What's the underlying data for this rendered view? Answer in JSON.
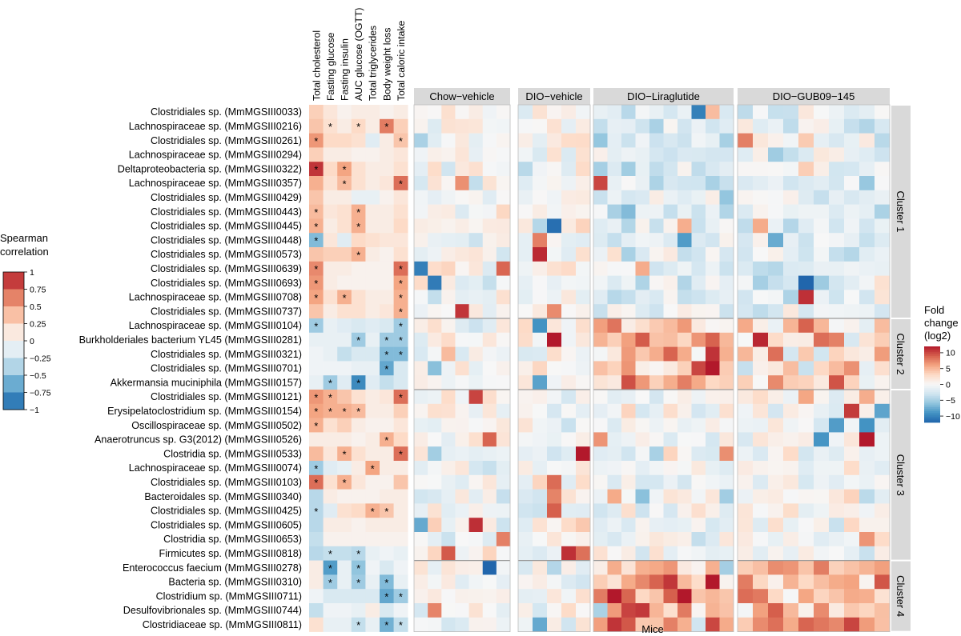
{
  "chart_data": [
    {
      "type": "heatmap",
      "title": "",
      "xlabel": "",
      "ylabel": "",
      "columns": [
        "Total cholesterol",
        "Fasting glucose",
        "Fasting insulin",
        "AUC glucose (OGTT)",
        "Total triglycerides",
        "Body weight loss",
        "Total caloric intake"
      ],
      "rows": [
        "Clostridiales sp. (MmMGSIII0033)",
        "Lachnospiraceae sp. (MmMGSIII0216)",
        "Clostridiales sp. (MmMGSIII0261)",
        "Lachnospiraceae sp. (MmMGSIII0294)",
        "Deltaproteobacteria sp. (MmMGSIII0322)",
        "Lachnospiraceae sp. (MmMGSIII0357)",
        "Clostridiales sp. (MmMGSIII0429)",
        "Clostridiales sp. (MmMGSIII0443)",
        "Clostridiales sp. (MmMGSIII0445)",
        "Clostridiales sp. (MmMGSIII0448)",
        "Clostridiales sp. (MmMGSIII0573)",
        "Clostridiales sp. (MmMGSIII0639)",
        "Clostridiales sp. (MmMGSIII0693)",
        "Lachnospiraceae sp. (MmMGSIII0708)",
        "Clostridiales sp. (MmMGSIII0737)",
        "Lachnospiraceae sp. (MmMGSIII0104)",
        "Burkholderiales bacterium YL45 (MmMGSIII0281)",
        "Clostridiales sp. (MmMGSIII0321)",
        "Clostridiales sp. (MmMGSIII0701)",
        "Akkermansia muciniphila (MmMGSIII0157)",
        "Clostridiales sp. (MmMGSIII0121)",
        "Erysipelatoclostridium sp. (MmMGSIII0154)",
        "Oscillospiraceae sp. (MmMGSIII0502)",
        "Anaerotruncus sp. G3(2012) (MmMGSIII0526)",
        "Clostridia sp. (MmMGSIII0533)",
        "Lachnospiraceae sp. (MmMGSIII0074)",
        "Clostridiales sp. (MmMGSIII0103)",
        "Bacteroidales sp. (MmMGSIII0340)",
        "Clostridiales sp. (MmMGSIII0425)",
        "Clostridiales sp. (MmMGSIII0605)",
        "Clostridia sp. (MmMGSIII0653)",
        "Firmicutes sp. (MmMGSIII0818)",
        "Enterococcus faecium (MmMGSIII0278)",
        "Bacteria sp. (MmMGSIII0310)",
        "Clostridium sp. (MmMGSIII0711)",
        "Desulfovibrionales sp. (MmMGSIII0744)",
        "Clostridiaceae sp. (MmMGSIII0811)"
      ],
      "values": [
        [
          0.3,
          0.15,
          0.05,
          0.1,
          0.1,
          0.05,
          0.1
        ],
        [
          0.35,
          0.2,
          0.1,
          0.25,
          0.1,
          0.65,
          0.3
        ],
        [
          0.55,
          0.25,
          0.25,
          0.2,
          -0.15,
          0.1,
          0.35
        ],
        [
          0.3,
          0.1,
          0.1,
          0.05,
          0.05,
          0.1,
          0.15
        ],
        [
          0.9,
          0.25,
          0.5,
          0.2,
          0.1,
          0.1,
          0.2
        ],
        [
          0.45,
          0.2,
          0.4,
          0.2,
          0.1,
          0.15,
          0.7
        ],
        [
          0.35,
          0.1,
          0.1,
          -0.1,
          -0.1,
          0.05,
          0.15
        ],
        [
          0.4,
          0.15,
          0.2,
          0.45,
          0.1,
          0.1,
          0.2
        ],
        [
          0.45,
          0.1,
          0.2,
          0.45,
          0.1,
          0.1,
          0.25
        ],
        [
          -0.55,
          0.15,
          -0.15,
          0.25,
          0.2,
          0.15,
          0.15
        ],
        [
          0.35,
          0.3,
          0.3,
          0.45,
          0.1,
          0.05,
          0.2
        ],
        [
          0.6,
          0.1,
          0.1,
          0.05,
          0.05,
          0.05,
          0.7
        ],
        [
          0.55,
          0.1,
          0.05,
          0.05,
          0.05,
          0.05,
          0.5
        ],
        [
          0.5,
          0.2,
          0.45,
          0.2,
          0.1,
          0.1,
          0.45
        ],
        [
          0.35,
          0.1,
          0.2,
          0.2,
          0.1,
          0.15,
          0.45
        ],
        [
          -0.45,
          -0.1,
          -0.15,
          -0.2,
          -0.15,
          -0.2,
          -0.45
        ],
        [
          -0.1,
          -0.1,
          -0.1,
          -0.45,
          -0.1,
          -0.45,
          -0.45
        ],
        [
          -0.05,
          -0.1,
          -0.3,
          -0.2,
          -0.2,
          -0.55,
          -0.55
        ],
        [
          -0.05,
          -0.05,
          -0.05,
          -0.1,
          -0.1,
          -0.65,
          -0.2
        ],
        [
          -0.1,
          -0.45,
          -0.15,
          -0.8,
          -0.15,
          -0.3,
          -0.2
        ],
        [
          0.55,
          0.45,
          0.35,
          0.2,
          0.1,
          0.15,
          0.7
        ],
        [
          0.5,
          0.45,
          0.45,
          0.4,
          0.1,
          0.1,
          0.3
        ],
        [
          0.45,
          0.2,
          0.3,
          0.1,
          0.05,
          0.05,
          0.15
        ],
        [
          0.1,
          0.1,
          0.1,
          0.05,
          0.1,
          0.45,
          0.25
        ],
        [
          0.4,
          0.15,
          0.45,
          0.2,
          0.1,
          0.1,
          0.7
        ],
        [
          -0.45,
          -0.15,
          -0.1,
          0.1,
          0.5,
          0.1,
          0.1
        ],
        [
          0.7,
          0.2,
          0.45,
          0.15,
          0.05,
          0.05,
          0.35
        ],
        [
          -0.35,
          0.1,
          0.05,
          0.05,
          0.05,
          0.1,
          0.1
        ],
        [
          -0.35,
          -0.15,
          0.2,
          0.25,
          0.45,
          0.35,
          0.1
        ],
        [
          -0.35,
          0.1,
          0.1,
          0.05,
          0.1,
          0.1,
          0.1
        ],
        [
          -0.3,
          0.05,
          0.05,
          0.05,
          0.05,
          0.05,
          0.05
        ],
        [
          -0.35,
          -0.3,
          -0.3,
          -0.35,
          -0.1,
          -0.05,
          -0.1
        ],
        [
          0.1,
          -0.7,
          -0.1,
          -0.5,
          -0.05,
          -0.2,
          -0.05
        ],
        [
          0.1,
          -0.45,
          -0.1,
          -0.45,
          -0.1,
          -0.55,
          -0.1
        ],
        [
          -0.05,
          -0.2,
          -0.2,
          -0.2,
          -0.2,
          -0.65,
          -0.45
        ],
        [
          -0.3,
          -0.05,
          -0.05,
          -0.1,
          0.1,
          -0.2,
          -0.05
        ],
        [
          0.2,
          -0.1,
          -0.1,
          -0.3,
          -0.1,
          -0.6,
          -0.3
        ]
      ],
      "significant": [
        [],
        [
          1,
          3,
          5
        ],
        [
          0,
          6
        ],
        [],
        [
          0,
          2
        ],
        [
          2,
          6
        ],
        [],
        [
          0,
          3
        ],
        [
          0,
          3
        ],
        [
          0
        ],
        [
          3
        ],
        [
          0,
          6
        ],
        [
          0,
          6
        ],
        [
          0,
          2,
          6
        ],
        [
          6
        ],
        [
          0,
          6
        ],
        [
          3,
          5,
          6
        ],
        [
          5,
          6
        ],
        [
          5
        ],
        [
          1,
          3
        ],
        [
          0,
          1,
          6
        ],
        [
          0,
          1,
          2,
          3
        ],
        [
          0
        ],
        [
          5
        ],
        [
          2,
          6
        ],
        [
          0,
          4
        ],
        [
          0,
          2
        ],
        [],
        [
          0,
          4,
          5
        ],
        [],
        [],
        [
          1,
          3
        ],
        [
          1,
          3
        ],
        [
          1,
          3,
          5
        ],
        [
          5,
          6
        ],
        [],
        [
          3,
          5,
          6
        ]
      ],
      "legend": {
        "title": [
          "Spearman",
          "correlation"
        ],
        "ticks": [
          "1",
          "0.75",
          "0.5",
          "0.25",
          "0",
          "−0.25",
          "−0.5",
          "−0.75",
          "−1"
        ],
        "colors": [
          "#b2182b",
          "#d6604d",
          "#f4a582",
          "#fddbc7",
          "#f7f7f7",
          "#d1e5f0",
          "#92c5de",
          "#4393c3",
          "#2166ac"
        ]
      }
    },
    {
      "type": "heatmap",
      "xlabel": "Mice",
      "panels": [
        {
          "label": "Chow−vehicle",
          "n_mice": 7
        },
        {
          "label": "DIO−vehicle",
          "n_mice": 5
        },
        {
          "label": "DIO−Liraglutide",
          "n_mice": 10
        },
        {
          "label": "DIO−GUB09−145",
          "n_mice": 10
        }
      ],
      "clusters": [
        {
          "label": "Cluster 1",
          "rows": 15
        },
        {
          "label": "Cluster 2",
          "rows": 5
        },
        {
          "label": "Cluster 3",
          "rows": 12
        },
        {
          "label": "Cluster 4",
          "rows": 5
        }
      ],
      "cluster_mean_log2fc": [
        {
          "Chow−vehicle": 0,
          "DIO−vehicle": 0,
          "DIO−Liraglutide": -2,
          "DIO−GUB09−145": -1.5
        },
        {
          "Chow−vehicle": 0,
          "DIO−vehicle": 0,
          "DIO−Liraglutide": 4,
          "DIO−GUB09−145": 3
        },
        {
          "Chow−vehicle": 0,
          "DIO−vehicle": 0,
          "DIO−Liraglutide": -0.5,
          "DIO−GUB09−145": 0
        },
        {
          "Chow−vehicle": 0,
          "DIO−vehicle": 0,
          "DIO−Liraglutide": 6,
          "DIO−GUB09−145": 5
        }
      ],
      "legend": {
        "title": [
          "Fold",
          "change",
          "(log2)"
        ],
        "ticks": [
          "10",
          "5",
          "0",
          "−5",
          "−10"
        ],
        "tick_values": [
          10,
          5,
          0,
          -5,
          -10
        ],
        "range": [
          -12,
          12
        ],
        "colors": [
          "#b2182b",
          "#d6604d",
          "#f4a582",
          "#fddbc7",
          "#f7f7f7",
          "#d1e5f0",
          "#92c5de",
          "#4393c3",
          "#2166ac"
        ]
      }
    }
  ]
}
